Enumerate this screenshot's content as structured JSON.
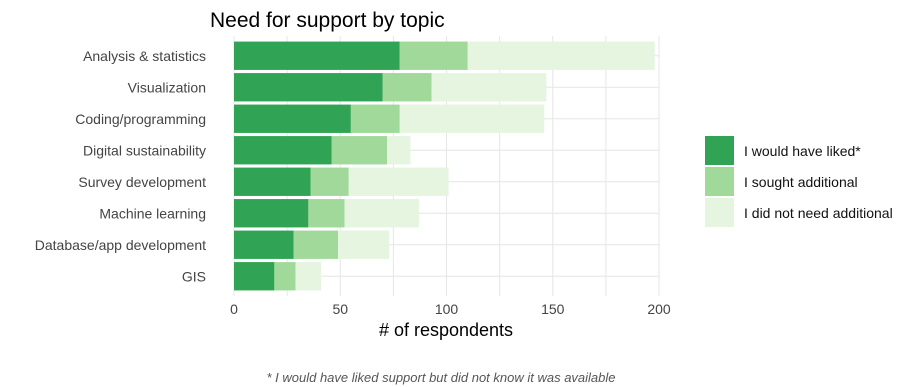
{
  "chart_data": {
    "type": "bar",
    "orientation": "horizontal",
    "stacked": true,
    "title": "Need for support by topic",
    "xlabel": "# of respondents",
    "ylabel": "",
    "xlim": [
      0,
      200
    ],
    "xticks": [
      0,
      50,
      100,
      150,
      200
    ],
    "grid": true,
    "legend_position": "right",
    "categories": [
      "Analysis & statistics",
      "Visualization",
      "Coding/programming",
      "Digital sustainability",
      "Survey development",
      "Machine learning",
      "Database/app development",
      "GIS"
    ],
    "series": [
      {
        "name": "I would have liked*",
        "color": "#31a354",
        "values": [
          78,
          70,
          55,
          46,
          36,
          35,
          28,
          19
        ]
      },
      {
        "name": "I sought additional",
        "color": "#a1d99b",
        "values": [
          32,
          23,
          23,
          26,
          18,
          17,
          21,
          10
        ]
      },
      {
        "name": "I did not need additional",
        "color": "#e5f5e0",
        "values": [
          88,
          54,
          68,
          11,
          47,
          35,
          24,
          12
        ]
      }
    ],
    "footnote": "* I would have liked support but did not know it was available"
  }
}
